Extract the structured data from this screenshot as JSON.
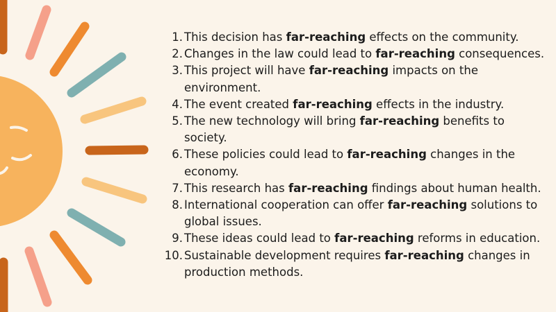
{
  "keyword": "far-reaching",
  "colors": {
    "background": "#fbf4ea",
    "sun": "#f7b35d",
    "ray_brown": "#c8651b",
    "ray_orange": "#ee8a30",
    "ray_pink": "#f5a08a",
    "ray_teal": "#7fb0b0",
    "ray_peach": "#f8c57e",
    "face": "#fbf4ea"
  },
  "sentences": [
    {
      "number": "1.",
      "before": "This decision has ",
      "after": " effects on the community."
    },
    {
      "number": "2.",
      "before": "Changes in the law could lead to ",
      "after": " consequences."
    },
    {
      "number": "3.",
      "before": "This project will have ",
      "after": " impacts on the environment."
    },
    {
      "number": "4.",
      "before": "The event created ",
      "after": " effects in the industry."
    },
    {
      "number": "5.",
      "before": "The new technology will bring ",
      "after": " benefits to society."
    },
    {
      "number": "6.",
      "before": "These policies could lead to ",
      "after": " changes in the economy."
    },
    {
      "number": "7.",
      "before": "This research has ",
      "after": " findings about human health."
    },
    {
      "number": "8.",
      "before": "International cooperation can offer ",
      "after": " solutions to global issues."
    },
    {
      "number": "9.",
      "before": "These ideas could lead to ",
      "after": " reforms in education."
    },
    {
      "number": "10.",
      "before": "Sustainable development requires ",
      "after": " changes in production methods."
    }
  ]
}
